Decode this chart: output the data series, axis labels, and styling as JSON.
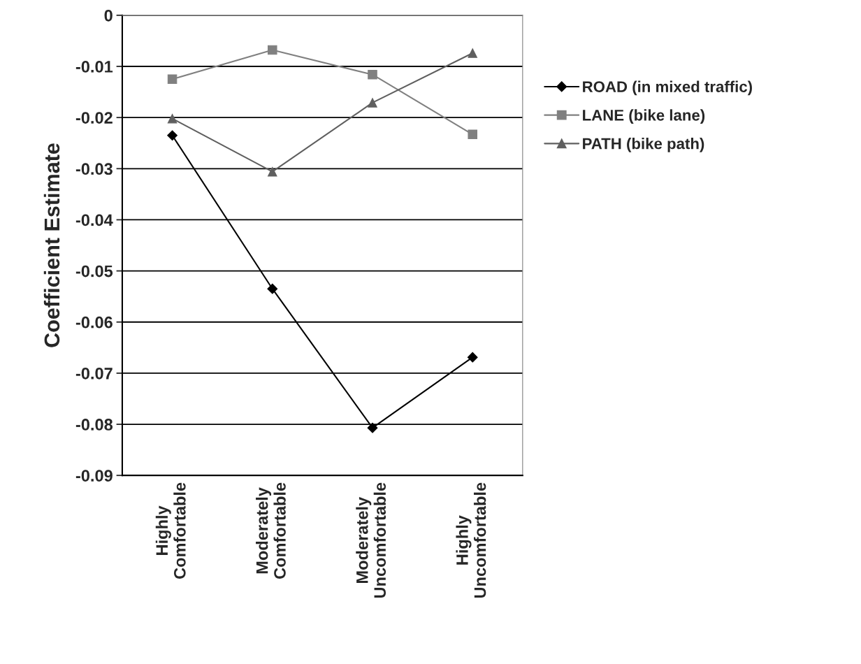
{
  "chart_data": {
    "type": "line",
    "ylabel": "Coefficient Estimate",
    "categories": [
      "Highly\nComfortable",
      "Moderately\nComfortable",
      "Moderately\nUncomfortable",
      "Highly\nUncomfortable"
    ],
    "series": [
      {
        "name": "ROAD (in mixed traffic)",
        "color": "#000000",
        "marker": "diamond",
        "values": [
          -0.0235,
          -0.0535,
          -0.0807,
          -0.0669
        ]
      },
      {
        "name": "LANE (bike lane)",
        "color": "#808080",
        "marker": "square",
        "values": [
          -0.0125,
          -0.0068,
          -0.0116,
          -0.0233
        ]
      },
      {
        "name": "PATH (bike path)",
        "color": "#5f5f5f",
        "marker": "triangle",
        "values": [
          -0.0202,
          -0.0306,
          -0.0171,
          -0.0074
        ]
      }
    ],
    "ylim": [
      -0.09,
      0
    ],
    "yticks": [
      -0.09,
      -0.08,
      -0.07,
      -0.06,
      -0.05,
      -0.04,
      -0.03,
      -0.02,
      -0.01,
      0
    ],
    "grid": "y",
    "legend": "right",
    "line_style": "solid"
  }
}
